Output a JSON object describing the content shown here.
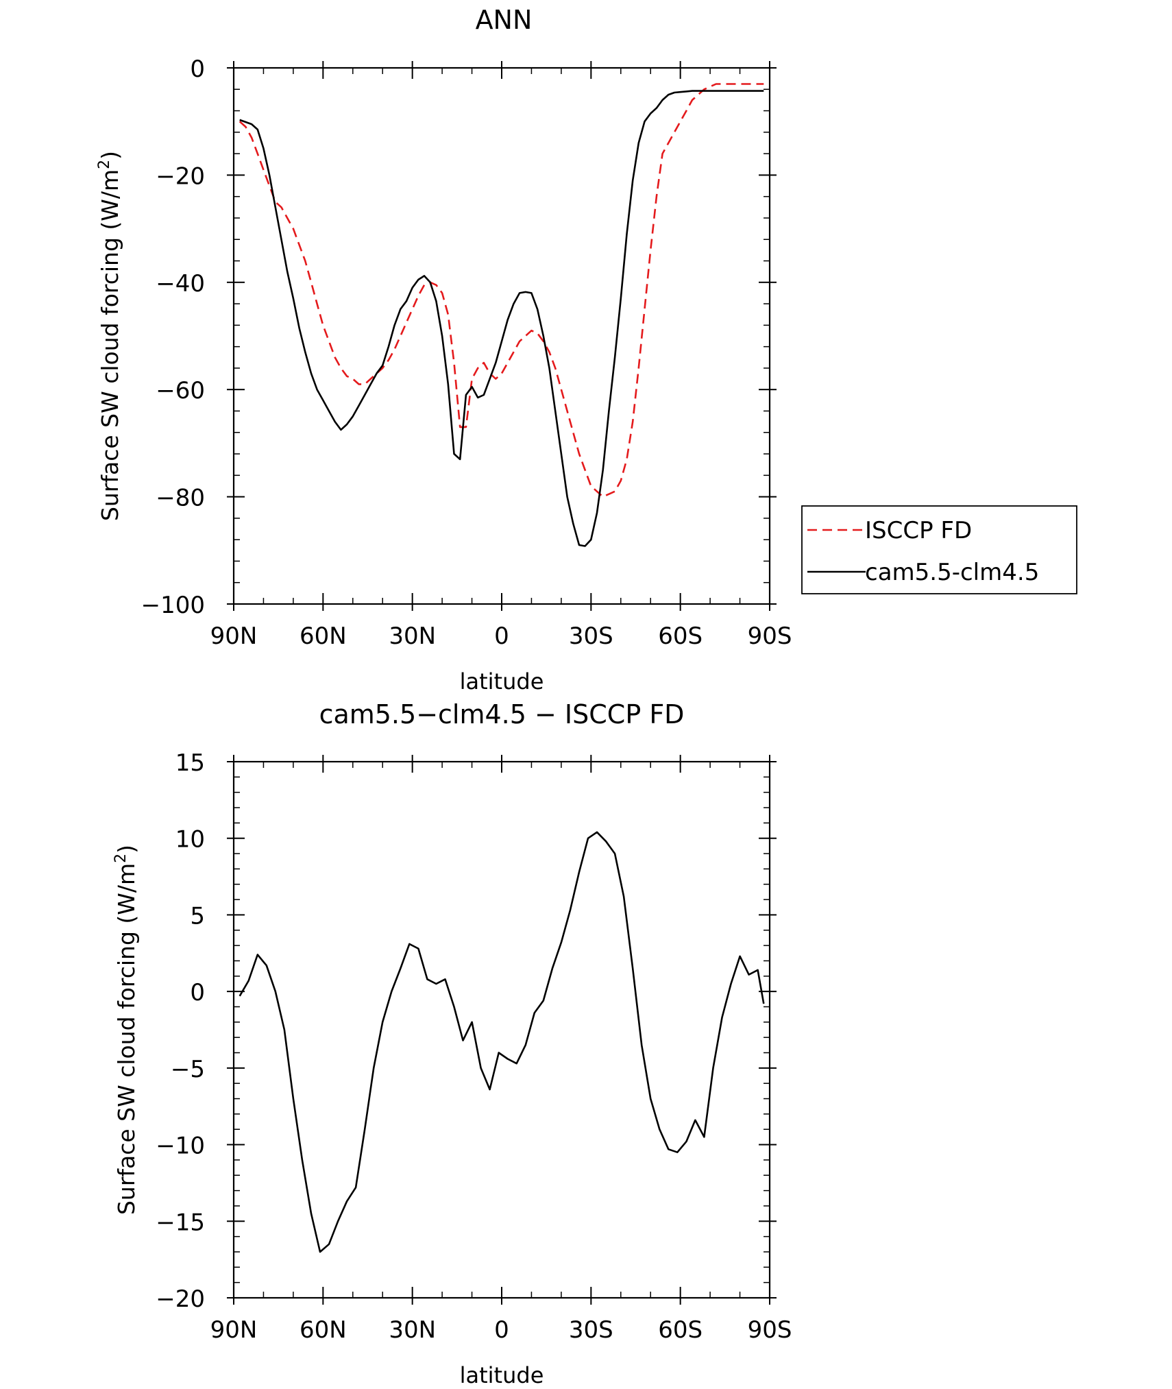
{
  "chart_data": [
    {
      "type": "line",
      "title": "ANN",
      "xlabel": "latitude",
      "ylabel_main": "Surface SW cloud forcing (W/m",
      "ylabel_sup": "2",
      "ylabel_close": ")",
      "xlim": [
        90,
        -90
      ],
      "ylim": [
        -100,
        0
      ],
      "xticks": [
        90,
        60,
        30,
        0,
        -30,
        -60,
        -90
      ],
      "xtick_labels": [
        "90N",
        "60N",
        "30N",
        "0",
        "30S",
        "60S",
        "90S"
      ],
      "yticks": [
        0,
        -20,
        -40,
        -60,
        -80,
        -100
      ],
      "ytick_labels": [
        "0",
        "−20",
        "−40",
        "−60",
        "−80",
        "−100"
      ],
      "grid": false,
      "legend": "right",
      "series": [
        {
          "name": "ISCCP FD",
          "color": "#e41a1c",
          "dash": "dashed",
          "x": [
            88,
            86,
            84,
            82,
            80,
            78,
            76,
            74,
            72,
            70,
            68,
            66,
            64,
            62,
            60,
            58,
            56,
            54,
            52,
            50,
            48,
            46,
            44,
            42,
            40,
            38,
            36,
            34,
            32,
            30,
            28,
            26,
            24,
            22,
            20,
            18,
            16,
            14,
            12,
            10,
            8,
            6,
            4,
            2,
            0,
            -2,
            -4,
            -6,
            -8,
            -10,
            -12,
            -14,
            -16,
            -18,
            -20,
            -22,
            -24,
            -26,
            -28,
            -30,
            -32,
            -34,
            -36,
            -38,
            -40,
            -42,
            -44,
            -46,
            -48,
            -50,
            -52,
            -54,
            -56,
            -58,
            -60,
            -62,
            -64,
            -66,
            -68,
            -70,
            -72,
            -74,
            -76,
            -78,
            -80,
            -82,
            -84,
            -86,
            -88
          ],
          "values": [
            -10,
            -11,
            -13,
            -16,
            -19,
            -22,
            -25,
            -26,
            -28,
            -30,
            -33,
            -36,
            -40,
            -44,
            -48,
            -51,
            -54,
            -56,
            -57.5,
            -58,
            -59,
            -59,
            -58,
            -57,
            -56,
            -54.5,
            -52.5,
            -50,
            -47.5,
            -45,
            -42.5,
            -40.5,
            -40,
            -40.5,
            -42,
            -46,
            -55,
            -67,
            -67,
            -58,
            -56,
            -55,
            -57,
            -58,
            -57,
            -55,
            -53,
            -51,
            -50,
            -49,
            -49.5,
            -51,
            -53,
            -56,
            -60,
            -64,
            -68,
            -72,
            -75,
            -78,
            -79,
            -80,
            -79.5,
            -79,
            -77,
            -73,
            -66,
            -56,
            -45,
            -34,
            -24,
            -16,
            -14,
            -12,
            -10,
            -8,
            -6,
            -5,
            -4,
            -3.5,
            -3,
            -3,
            -3,
            -3,
            -3,
            -3,
            -3,
            -3,
            -3
          ]
        },
        {
          "name": "cam5.5-clm4.5",
          "color": "#000000",
          "dash": "solid",
          "x": [
            88,
            86,
            84,
            82,
            80,
            78,
            76,
            74,
            72,
            70,
            68,
            66,
            64,
            62,
            60,
            58,
            56,
            54,
            52,
            50,
            48,
            46,
            44,
            42,
            40,
            38,
            36,
            34,
            32,
            30,
            28,
            26,
            24,
            22,
            20,
            18,
            16,
            14,
            12,
            10,
            8,
            6,
            4,
            2,
            0,
            -2,
            -4,
            -6,
            -8,
            -10,
            -12,
            -14,
            -16,
            -18,
            -20,
            -22,
            -24,
            -26,
            -28,
            -30,
            -32,
            -34,
            -36,
            -38,
            -40,
            -42,
            -44,
            -46,
            -48,
            -50,
            -52,
            -54,
            -56,
            -58,
            -60,
            -62,
            -64,
            -66,
            -68,
            -70,
            -72,
            -74,
            -76,
            -78,
            -80,
            -82,
            -84,
            -86,
            -88
          ],
          "values": [
            -9.7,
            -10.1,
            -10.5,
            -11.5,
            -15,
            -20,
            -26,
            -32,
            -38,
            -43,
            -48.5,
            -53,
            -57,
            -60,
            -62,
            -64,
            -66,
            -67.5,
            -66.5,
            -65,
            -63,
            -61,
            -59,
            -57,
            -55.5,
            -52,
            -48,
            -45,
            -43.5,
            -41,
            -39.5,
            -38.8,
            -40,
            -43.5,
            -50,
            -59,
            -72,
            -73,
            -61,
            -59.5,
            -61.5,
            -61,
            -58,
            -55,
            -51,
            -47,
            -44,
            -42,
            -41.8,
            -42,
            -45,
            -50,
            -56,
            -64,
            -72,
            -80,
            -85,
            -89,
            -89.2,
            -88,
            -83,
            -75,
            -64,
            -54,
            -43,
            -31,
            -21,
            -14,
            -10,
            -8.5,
            -7.5,
            -6,
            -5,
            -4.6,
            -4.5,
            -4.4,
            -4.3,
            -4.3,
            -4.3,
            -4.3,
            -4.3,
            -4.3,
            -4.3,
            -4.3,
            -4.3,
            -4.3,
            -4.3,
            -4.3,
            -4.3
          ]
        }
      ]
    },
    {
      "type": "line",
      "title": "cam5.5−clm4.5 − ISCCP FD",
      "xlabel": "latitude",
      "ylabel_main": "Surface SW cloud forcing (W/m",
      "ylabel_sup": "2",
      "ylabel_close": ")",
      "xlim": [
        90,
        -90
      ],
      "ylim": [
        -20,
        15
      ],
      "xticks": [
        90,
        60,
        30,
        0,
        -30,
        -60,
        -90
      ],
      "xtick_labels": [
        "90N",
        "60N",
        "30N",
        "0",
        "30S",
        "60S",
        "90S"
      ],
      "yticks": [
        15,
        10,
        5,
        0,
        -5,
        -10,
        -15,
        -20
      ],
      "ytick_labels": [
        "15",
        "10",
        "5",
        "0",
        "−5",
        "−10",
        "−15",
        "−20"
      ],
      "grid": false,
      "series": [
        {
          "color": "#000000",
          "dash": "solid",
          "x": [
            88,
            85,
            82,
            79,
            76,
            73,
            70,
            67,
            64,
            61,
            58,
            55,
            52,
            49,
            46,
            43,
            40,
            37,
            34,
            31,
            28,
            25,
            22,
            19,
            16,
            13,
            10,
            7,
            4,
            1,
            -2,
            -5,
            -8,
            -11,
            -14,
            -17,
            -20,
            -23,
            -26,
            -29,
            -32,
            -35,
            -38,
            -41,
            -44,
            -47,
            -50,
            -53,
            -56,
            -59,
            -62,
            -65,
            -68,
            -71,
            -74,
            -77,
            -80,
            -83,
            -86,
            -88
          ],
          "values": [
            -0.3,
            0.7,
            2.4,
            1.7,
            0,
            -2.5,
            -7,
            -11,
            -14.5,
            -17,
            -16.5,
            -15,
            -13.7,
            -12.8,
            -9,
            -5,
            -2,
            0,
            1.5,
            3.1,
            2.8,
            0.8,
            0.5,
            0.8,
            -1,
            -3.2,
            -2,
            -5,
            -6.4,
            -4,
            -4.4,
            -4.7,
            -3.5,
            -1.4,
            -0.6,
            1.5,
            3.2,
            5.3,
            7.8,
            10,
            10.4,
            9.8,
            9,
            6.2,
            1.5,
            -3.5,
            -7,
            -9,
            -10.3,
            -10.5,
            -9.8,
            -8.4,
            -9.5,
            -5,
            -1.7,
            0.5,
            2.3,
            1.1,
            1.4,
            -0.8
          ]
        }
      ]
    }
  ]
}
